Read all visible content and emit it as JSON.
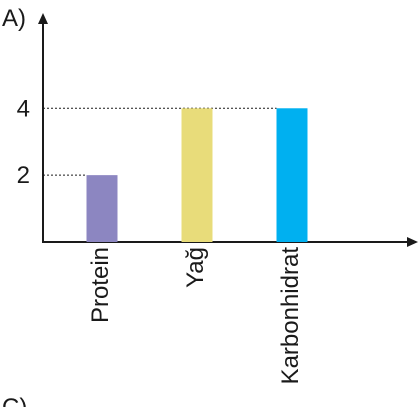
{
  "option_label": "A)",
  "next_option_label": "C)",
  "chart_data": {
    "type": "bar",
    "title": "",
    "xlabel": "",
    "ylabel": "",
    "categories": [
      "Protein",
      "Yağ",
      "Karbonhidrat"
    ],
    "values": [
      2,
      4,
      4
    ],
    "colors": [
      "#8C86C1",
      "#E8DC7A",
      "#00B0F0"
    ],
    "yticks": [
      2,
      4
    ],
    "ylim": [
      0,
      6.85
    ],
    "grid": false,
    "legend": "none"
  }
}
